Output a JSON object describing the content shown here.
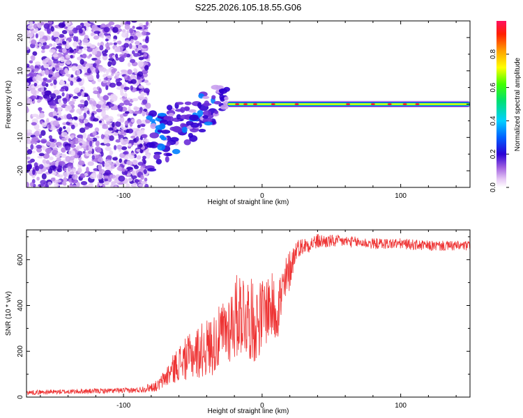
{
  "title": "S225.2026.105.18.55.G06",
  "chart_data": [
    {
      "type": "heatmap",
      "name": "spectrogram",
      "xlabel": "Height of straight line (km)",
      "ylabel": "Frequency (Hz)",
      "xlim": [
        -170,
        150
      ],
      "ylim": [
        -25,
        25
      ],
      "xticks": [
        -100,
        0,
        100
      ],
      "yticks": [
        -20,
        -10,
        0,
        10,
        20
      ],
      "colorbar": {
        "label": "Normalized spectral amplitude",
        "range": [
          0.0,
          1.0
        ],
        "ticks": [
          0.0,
          0.2,
          0.4,
          0.6,
          0.8
        ],
        "tick_labels": [
          "0.0",
          "0.2",
          "0.4",
          "0.6",
          "0.8"
        ]
      },
      "features": {
        "noise_region_x": [
          -170,
          -82
        ],
        "transition_region_x": [
          -82,
          -25
        ],
        "coherent_line_x": [
          -25,
          150
        ],
        "line_frequency_hz": 0
      }
    },
    {
      "type": "line",
      "name": "snr",
      "xlabel": "Height of straight line (km)",
      "ylabel": "SNR (10 * v/v)",
      "xlim": [
        -170,
        150
      ],
      "ylim": [
        0,
        730
      ],
      "xticks": [
        -100,
        0,
        100
      ],
      "yticks": [
        0,
        200,
        400,
        600
      ],
      "color": "#ee3333",
      "anchors": {
        "x": [
          -170,
          -90,
          -75,
          -60,
          -45,
          -35,
          -25,
          -15,
          -5,
          5,
          10,
          15,
          20,
          25,
          40,
          60,
          80,
          100,
          120,
          150
        ],
        "y": [
          20,
          30,
          50,
          150,
          200,
          230,
          300,
          380,
          320,
          400,
          380,
          450,
          560,
          650,
          680,
          680,
          670,
          670,
          660,
          660
        ]
      },
      "noise_amplitude": {
        "x": [
          -170,
          -90,
          -75,
          -60,
          -45,
          -30,
          -15,
          0,
          15,
          25,
          60,
          150
        ],
        "y": [
          10,
          12,
          25,
          80,
          120,
          140,
          200,
          160,
          140,
          40,
          25,
          22
        ]
      }
    }
  ]
}
